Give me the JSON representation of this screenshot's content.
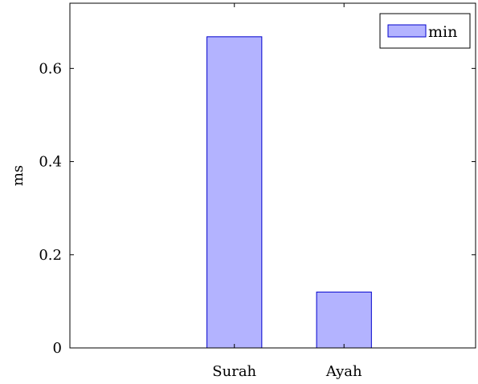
{
  "chart_data": {
    "type": "bar",
    "categories": [
      "Surah",
      "Ayah"
    ],
    "series": [
      {
        "name": "min",
        "values": [
          0.668,
          0.12
        ]
      }
    ],
    "title": "",
    "xlabel": "",
    "ylabel": "ms",
    "ylim": [
      0,
      0.74
    ],
    "xlim": [
      -0.5,
      3.2
    ],
    "category_positions": [
      1,
      2
    ],
    "yticks": [
      0,
      0.2,
      0.4,
      0.6
    ],
    "ytick_labels": [
      "0",
      "0.2",
      "0.4",
      "0.6"
    ],
    "grid": false,
    "legend_position": "top-right"
  },
  "colors": {
    "bar_fill": "#b3b3ff",
    "bar_stroke": "#0000cc",
    "axis": "#000000"
  }
}
